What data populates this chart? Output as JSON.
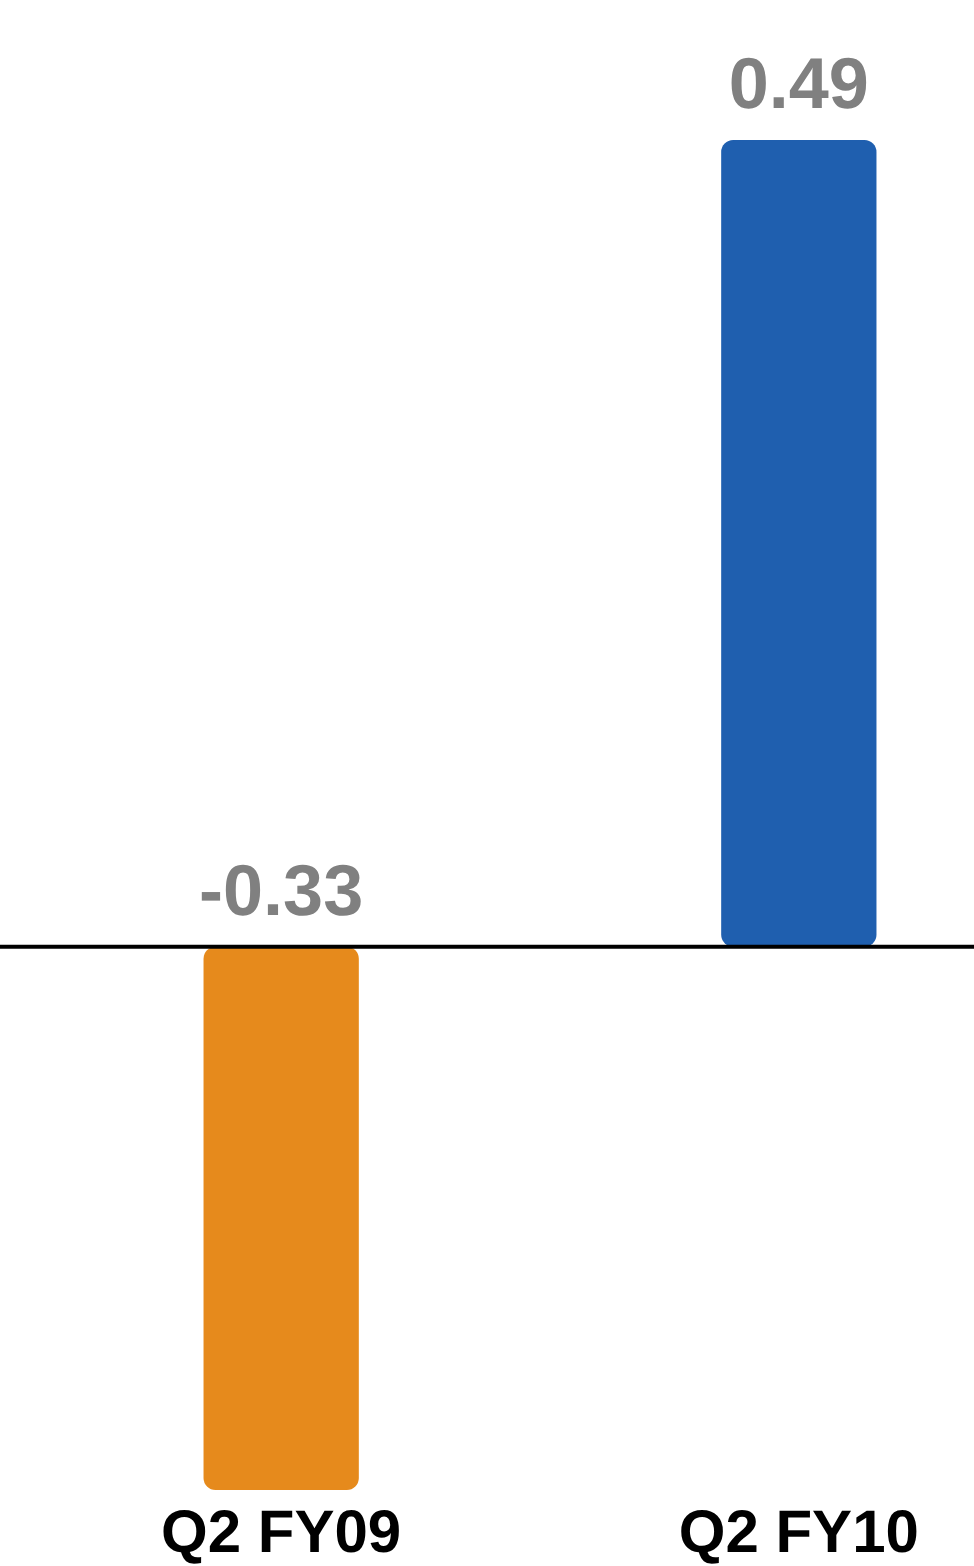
{
  "chart_data": {
    "type": "bar",
    "categories": [
      "Q2 FY09",
      "Q2 FY10"
    ],
    "values": [
      -0.33,
      0.49
    ],
    "colors": [
      "#e68a1c",
      "#1f5faf"
    ],
    "data_labels": true
  }
}
